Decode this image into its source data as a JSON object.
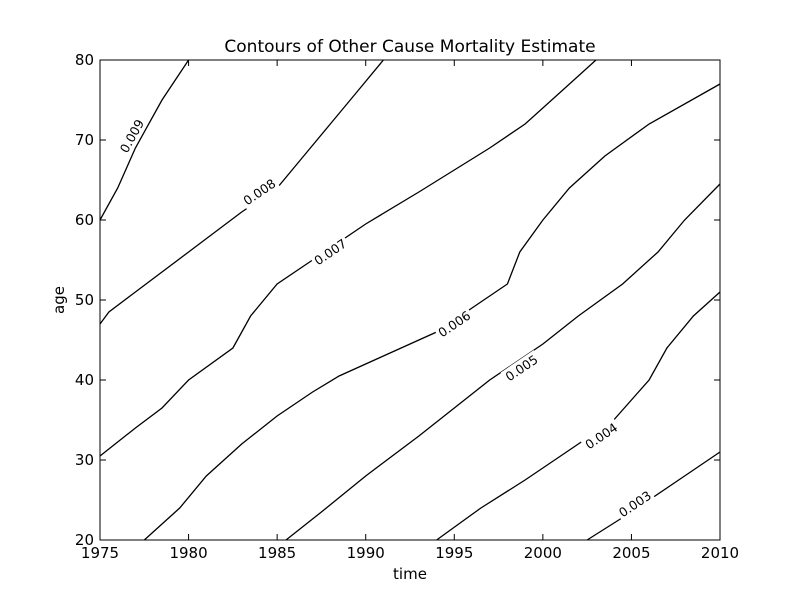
{
  "chart_data": {
    "type": "contour",
    "title": "Contours of Other Cause Mortality Estimate",
    "xlabel": "time",
    "ylabel": "age",
    "xlim": [
      1975,
      2010
    ],
    "ylim": [
      20,
      80
    ],
    "x_ticks": [
      1975,
      1980,
      1985,
      1990,
      1995,
      2000,
      2005,
      2010
    ],
    "y_ticks": [
      20,
      30,
      40,
      50,
      60,
      70,
      80
    ],
    "grid": false,
    "contours": [
      {
        "level": "0.009",
        "label_at": [
          1976.8,
          70.5
        ],
        "points": [
          [
            1975.0,
            60.0
          ],
          [
            1976.0,
            64.0
          ],
          [
            1977.0,
            69.0
          ],
          [
            1978.5,
            75.0
          ],
          [
            1980.0,
            80.0
          ]
        ]
      },
      {
        "level": "0.008",
        "label_at": [
          1984.0,
          63.5
        ],
        "points": [
          [
            1975.0,
            47.0
          ],
          [
            1975.5,
            48.5
          ],
          [
            1977.0,
            51.0
          ],
          [
            1980.0,
            56.0
          ],
          [
            1983.0,
            61.0
          ],
          [
            1985.0,
            64.0
          ],
          [
            1986.5,
            68.0
          ],
          [
            1988.0,
            72.0
          ],
          [
            1989.5,
            76.0
          ],
          [
            1991.0,
            80.0
          ]
        ]
      },
      {
        "level": "0.007",
        "label_at": [
          1988.0,
          56.0
        ],
        "points": [
          [
            1975.0,
            30.5
          ],
          [
            1977.0,
            34.0
          ],
          [
            1978.5,
            36.5
          ],
          [
            1980.0,
            40.0
          ],
          [
            1982.5,
            44.0
          ],
          [
            1983.5,
            48.0
          ],
          [
            1985.0,
            52.0
          ],
          [
            1987.0,
            55.0
          ],
          [
            1990.0,
            59.5
          ],
          [
            1993.0,
            63.5
          ],
          [
            1997.0,
            69.0
          ],
          [
            1999.0,
            72.0
          ],
          [
            2001.0,
            76.0
          ],
          [
            2003.0,
            80.0
          ]
        ]
      },
      {
        "level": "0.006",
        "label_at": [
          1995.0,
          47.0
        ],
        "points": [
          [
            1977.5,
            20.0
          ],
          [
            1979.5,
            24.0
          ],
          [
            1981.0,
            28.0
          ],
          [
            1983.0,
            32.0
          ],
          [
            1985.0,
            35.5
          ],
          [
            1987.0,
            38.5
          ],
          [
            1988.5,
            40.5
          ],
          [
            1991.0,
            43.0
          ],
          [
            1994.0,
            46.0
          ],
          [
            1996.0,
            49.0
          ],
          [
            1998.0,
            52.0
          ],
          [
            1998.7,
            56.0
          ],
          [
            2000.0,
            60.0
          ],
          [
            2001.5,
            64.0
          ],
          [
            2003.5,
            68.0
          ],
          [
            2006.0,
            72.0
          ],
          [
            2010.0,
            77.0
          ]
        ]
      },
      {
        "level": "0.005",
        "label_at": [
          1998.8,
          41.5
        ],
        "points": [
          [
            1985.5,
            20.0
          ],
          [
            1987.5,
            23.5
          ],
          [
            1990.0,
            28.0
          ],
          [
            1993.0,
            33.0
          ],
          [
            1995.0,
            36.5
          ],
          [
            1997.0,
            40.0
          ],
          [
            2000.0,
            44.5
          ],
          [
            2002.0,
            48.0
          ],
          [
            2004.5,
            52.0
          ],
          [
            2006.5,
            56.0
          ],
          [
            2008.0,
            60.0
          ],
          [
            2010.0,
            64.5
          ]
        ]
      },
      {
        "level": "0.004",
        "label_at": [
          2003.3,
          33.0
        ],
        "points": [
          [
            1994.0,
            20.0
          ],
          [
            1996.5,
            24.0
          ],
          [
            1999.0,
            27.5
          ],
          [
            2001.0,
            30.5
          ],
          [
            2004.0,
            35.0
          ],
          [
            2006.0,
            40.0
          ],
          [
            2007.0,
            44.0
          ],
          [
            2008.5,
            48.0
          ],
          [
            2010.0,
            51.0
          ]
        ]
      },
      {
        "level": "0.003",
        "label_at": [
          2005.2,
          24.5
        ],
        "points": [
          [
            2002.5,
            20.0
          ],
          [
            2005.0,
            23.5
          ],
          [
            2008.0,
            28.0
          ],
          [
            2010.0,
            31.0
          ]
        ]
      }
    ]
  }
}
